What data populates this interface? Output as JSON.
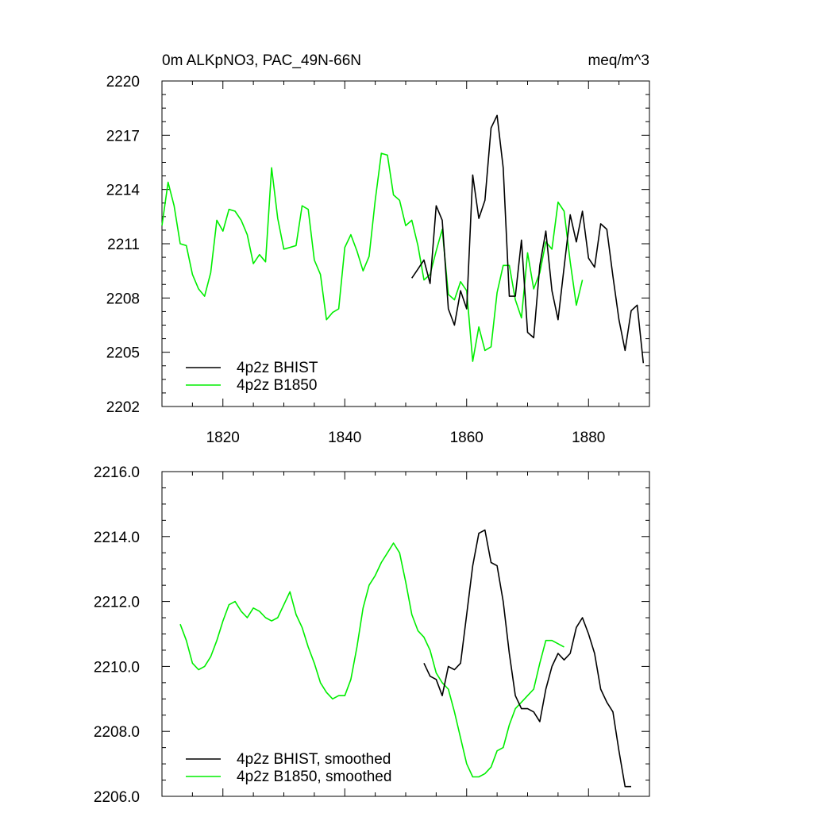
{
  "header": {
    "left_title": "0m ALKpNO3, PAC_49N-66N",
    "right_title": "meq/m^3"
  },
  "colors": {
    "bhist": "#000000",
    "b1850": "#00ee00",
    "frame": "#000000"
  },
  "chart_data": [
    {
      "type": "line",
      "title": "0m ALKpNO3, PAC_49N-66N",
      "units": "meq/m^3",
      "xlim": [
        1810,
        1890
      ],
      "ylim": [
        2202,
        2220
      ],
      "xticks": [
        1820,
        1840,
        1860,
        1880
      ],
      "xtick_labels": [
        "1820",
        "1840",
        "1860",
        "1880"
      ],
      "yticks": [
        2202,
        2205,
        2208,
        2211,
        2214,
        2217,
        2220
      ],
      "ytick_labels": [
        "2202",
        "2205",
        "2208",
        "2211",
        "2214",
        "2217",
        "2220"
      ],
      "legend_position": "bottom-left",
      "series": [
        {
          "name": "4p2z BHIST",
          "color": "#000000",
          "x": [
            1851,
            1852,
            1853,
            1854,
            1855,
            1856,
            1857,
            1858,
            1859,
            1860,
            1861,
            1862,
            1863,
            1864,
            1865,
            1866,
            1867,
            1868,
            1869,
            1870,
            1871,
            1872,
            1873,
            1874,
            1875,
            1876,
            1877,
            1878,
            1879,
            1880,
            1881,
            1882,
            1883,
            1884,
            1885,
            1886,
            1887,
            1888,
            1889
          ],
          "y": [
            2209.1,
            2209.6,
            2210.1,
            2208.8,
            2213.1,
            2212.3,
            2207.4,
            2206.5,
            2208.4,
            2207.4,
            2214.8,
            2212.4,
            2213.4,
            2217.4,
            2218.1,
            2215.2,
            2208.1,
            2208.1,
            2211.2,
            2206.1,
            2205.8,
            2209.8,
            2211.7,
            2208.4,
            2206.8,
            2209.7,
            2212.6,
            2211.1,
            2212.8,
            2210.2,
            2209.7,
            2212.1,
            2211.8,
            2209.2,
            2206.8,
            2205.1,
            2207.3,
            2207.6,
            2204.4
          ]
        },
        {
          "name": "4p2z B1850",
          "color": "#00ee00",
          "x": [
            1810,
            1811,
            1812,
            1813,
            1814,
            1815,
            1816,
            1817,
            1818,
            1819,
            1820,
            1821,
            1822,
            1823,
            1824,
            1825,
            1826,
            1827,
            1828,
            1829,
            1830,
            1831,
            1832,
            1833,
            1834,
            1835,
            1836,
            1837,
            1838,
            1839,
            1840,
            1841,
            1842,
            1843,
            1844,
            1845,
            1846,
            1847,
            1848,
            1849,
            1850,
            1851,
            1852,
            1853,
            1854,
            1855,
            1856,
            1857,
            1858,
            1859,
            1860,
            1861,
            1862,
            1863,
            1864,
            1865,
            1866,
            1867,
            1868,
            1869,
            1870,
            1871,
            1872,
            1873,
            1874,
            1875,
            1876,
            1877,
            1878,
            1879
          ],
          "y": [
            2212.0,
            2214.4,
            2213.1,
            2211.0,
            2210.9,
            2209.3,
            2208.5,
            2208.1,
            2209.4,
            2212.3,
            2211.7,
            2212.9,
            2212.8,
            2212.3,
            2211.5,
            2209.9,
            2210.4,
            2210.0,
            2215.2,
            2212.4,
            2210.7,
            2210.8,
            2210.9,
            2213.1,
            2212.9,
            2210.1,
            2209.3,
            2206.8,
            2207.2,
            2207.4,
            2210.8,
            2211.5,
            2210.6,
            2209.5,
            2210.3,
            2213.4,
            2216.0,
            2215.9,
            2213.7,
            2213.4,
            2212.0,
            2212.3,
            2210.9,
            2209.0,
            2209.3,
            2210.6,
            2211.8,
            2208.2,
            2207.9,
            2208.9,
            2208.4,
            2204.5,
            2206.4,
            2205.1,
            2205.3,
            2208.3,
            2209.8,
            2209.8,
            2207.9,
            2206.9,
            2210.5,
            2208.5,
            2209.4,
            2211.1,
            2210.7,
            2213.3,
            2212.8,
            2210.0,
            2207.6,
            2209.0
          ]
        }
      ]
    },
    {
      "type": "line",
      "xlim": [
        1810,
        1890
      ],
      "ylim": [
        2206.0,
        2216.0
      ],
      "xticks": [
        1820,
        1840,
        1860,
        1880
      ],
      "xtick_labels": [],
      "yticks": [
        2206.0,
        2208.0,
        2210.0,
        2212.0,
        2214.0,
        2216.0
      ],
      "ytick_labels": [
        "2206.0",
        "2208.0",
        "2210.0",
        "2212.0",
        "2214.0",
        "2216.0"
      ],
      "legend_position": "bottom-left",
      "series": [
        {
          "name": "4p2z BHIST, smoothed",
          "color": "#000000",
          "x": [
            1853,
            1854,
            1855,
            1856,
            1857,
            1858,
            1859,
            1860,
            1861,
            1862,
            1863,
            1864,
            1865,
            1866,
            1867,
            1868,
            1869,
            1870,
            1871,
            1872,
            1873,
            1874,
            1875,
            1876,
            1877,
            1878,
            1879,
            1880,
            1881,
            1882,
            1883,
            1884,
            1885,
            1886,
            1887
          ],
          "y": [
            2210.1,
            2209.7,
            2209.6,
            2209.1,
            2210.0,
            2209.9,
            2210.1,
            2211.6,
            2213.1,
            2214.1,
            2214.2,
            2213.2,
            2213.1,
            2212.0,
            2210.4,
            2209.1,
            2208.7,
            2208.7,
            2208.6,
            2208.3,
            2209.3,
            2210.0,
            2210.4,
            2210.2,
            2210.4,
            2211.2,
            2211.5,
            2211.0,
            2210.4,
            2209.3,
            2208.9,
            2208.6,
            2207.4,
            2206.3,
            2206.3
          ]
        },
        {
          "name": "4p2z B1850, smoothed",
          "color": "#00ee00",
          "x": [
            1813,
            1814,
            1815,
            1816,
            1817,
            1818,
            1819,
            1820,
            1821,
            1822,
            1823,
            1824,
            1825,
            1826,
            1827,
            1828,
            1829,
            1830,
            1831,
            1832,
            1833,
            1834,
            1835,
            1836,
            1837,
            1838,
            1839,
            1840,
            1841,
            1842,
            1843,
            1844,
            1845,
            1846,
            1847,
            1848,
            1849,
            1850,
            1851,
            1852,
            1853,
            1854,
            1855,
            1856,
            1857,
            1858,
            1859,
            1860,
            1861,
            1862,
            1863,
            1864,
            1865,
            1866,
            1867,
            1868,
            1869,
            1870,
            1871,
            1872,
            1873,
            1874,
            1875,
            1876
          ],
          "y": [
            2211.3,
            2210.8,
            2210.1,
            2209.9,
            2210.0,
            2210.3,
            2210.8,
            2211.4,
            2211.9,
            2212.0,
            2211.7,
            2211.5,
            2211.8,
            2211.7,
            2211.5,
            2211.4,
            2211.5,
            2211.9,
            2212.3,
            2211.6,
            2211.2,
            2210.6,
            2210.1,
            2209.5,
            2209.2,
            2209.0,
            2209.1,
            2209.1,
            2209.6,
            2210.6,
            2211.8,
            2212.5,
            2212.8,
            2213.2,
            2213.5,
            2213.8,
            2213.5,
            2212.6,
            2211.6,
            2211.1,
            2210.9,
            2210.5,
            2209.8,
            2209.5,
            2209.3,
            2208.6,
            2207.8,
            2207.0,
            2206.6,
            2206.6,
            2206.7,
            2206.9,
            2207.4,
            2207.5,
            2208.2,
            2208.7,
            2208.9,
            2209.1,
            2209.3,
            2210.1,
            2210.8,
            2210.8,
            2210.7,
            2210.6
          ]
        }
      ]
    }
  ]
}
